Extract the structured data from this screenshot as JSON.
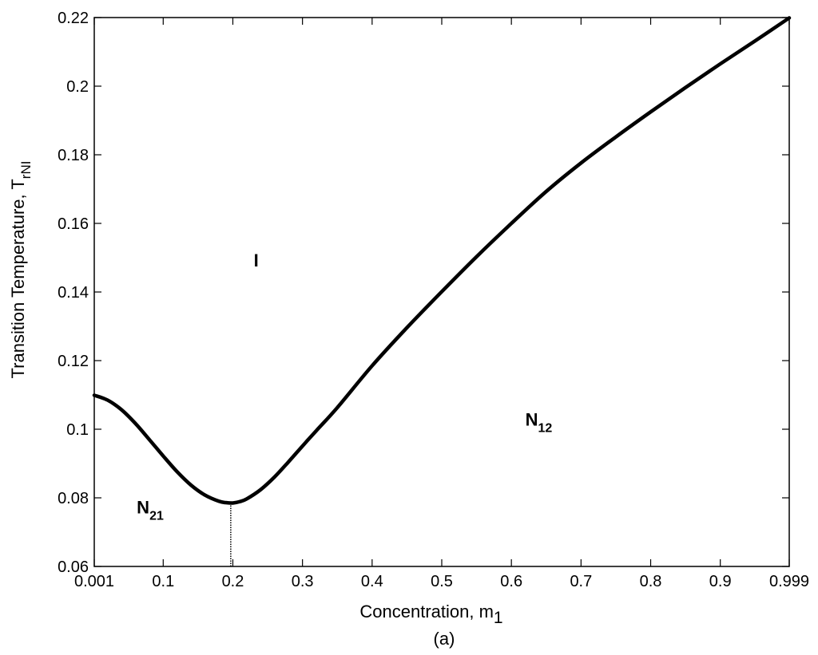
{
  "chart_data": {
    "type": "line",
    "xlabel": "Concentration, m",
    "xlabel_sub": "1",
    "ylabel": "Transition Temperature, T",
    "ylabel_sub": "rNI",
    "caption": "(a)",
    "xlim": [
      0.001,
      0.999
    ],
    "ylim": [
      0.06,
      0.22
    ],
    "grid": false,
    "x_ticks": [
      0.001,
      0.1,
      0.2,
      0.3,
      0.4,
      0.5,
      0.6,
      0.7,
      0.8,
      0.9,
      0.999
    ],
    "x_tick_labels": [
      "0.001",
      "0.1",
      "0.2",
      "0.3",
      "0.4",
      "0.5",
      "0.6",
      "0.7",
      "0.8",
      "0.9",
      "0.999"
    ],
    "y_ticks": [
      0.06,
      0.08,
      0.1,
      0.12,
      0.14,
      0.16,
      0.18,
      0.2,
      0.22
    ],
    "y_tick_labels": [
      "0.06",
      "0.08",
      "0.1",
      "0.12",
      "0.14",
      "0.16",
      "0.18",
      "0.2",
      "0.22"
    ],
    "series": [
      {
        "x": [
          0.001,
          0.02,
          0.04,
          0.06,
          0.08,
          0.1,
          0.12,
          0.14,
          0.16,
          0.18,
          0.19,
          0.2,
          0.21,
          0.22,
          0.24,
          0.26,
          0.28,
          0.3,
          0.32,
          0.35,
          0.4,
          0.45,
          0.5,
          0.55,
          0.6,
          0.65,
          0.7,
          0.75,
          0.8,
          0.85,
          0.9,
          0.95,
          0.999
        ],
        "y": [
          0.1099,
          0.1085,
          0.1057,
          0.1017,
          0.097,
          0.0922,
          0.0876,
          0.0837,
          0.0808,
          0.079,
          0.0786,
          0.0785,
          0.0789,
          0.0797,
          0.0824,
          0.0861,
          0.0905,
          0.0951,
          0.0996,
          0.1063,
          0.1185,
          0.1296,
          0.1401,
          0.1503,
          0.16,
          0.1693,
          0.1776,
          0.1852,
          0.1925,
          0.1996,
          0.2065,
          0.2132,
          0.2199
        ]
      }
    ],
    "minimum_marker": {
      "x": 0.197,
      "y": 0.0785,
      "style": "dotted"
    },
    "annotations": [
      {
        "text": "I",
        "sub": "",
        "x": 0.23,
        "y": 0.1475
      },
      {
        "text": "N",
        "sub": "21",
        "x": 0.062,
        "y": 0.0755
      },
      {
        "text": "N",
        "sub": "12",
        "x": 0.62,
        "y": 0.101
      }
    ]
  }
}
